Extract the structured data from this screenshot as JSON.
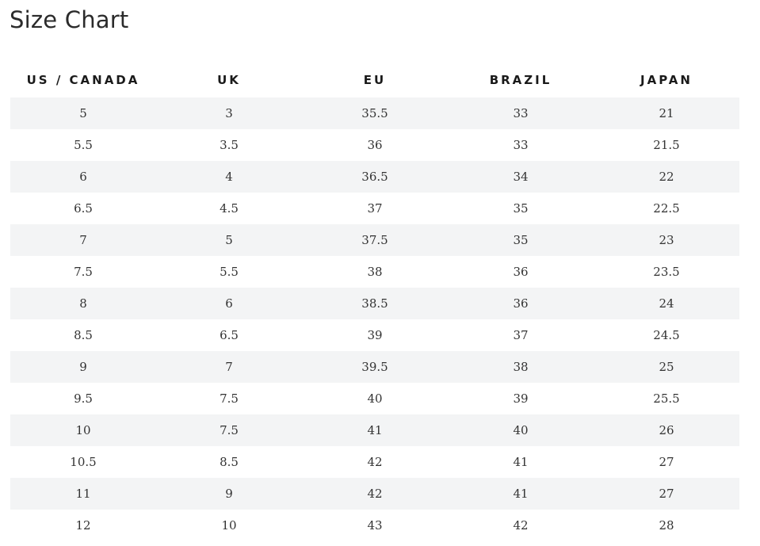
{
  "title": "Size Chart",
  "table": {
    "headers": [
      "US / CANADA",
      "UK",
      "EU",
      "BRAZIL",
      "JAPAN"
    ],
    "rows": [
      [
        "5",
        "3",
        "35.5",
        "33",
        "21"
      ],
      [
        "5.5",
        "3.5",
        "36",
        "33",
        "21.5"
      ],
      [
        "6",
        "4",
        "36.5",
        "34",
        "22"
      ],
      [
        "6.5",
        "4.5",
        "37",
        "35",
        "22.5"
      ],
      [
        "7",
        "5",
        "37.5",
        "35",
        "23"
      ],
      [
        "7.5",
        "5.5",
        "38",
        "36",
        "23.5"
      ],
      [
        "8",
        "6",
        "38.5",
        "36",
        "24"
      ],
      [
        "8.5",
        "6.5",
        "39",
        "37",
        "24.5"
      ],
      [
        "9",
        "7",
        "39.5",
        "38",
        "25"
      ],
      [
        "9.5",
        "7.5",
        "40",
        "39",
        "25.5"
      ],
      [
        "10",
        "7.5",
        "41",
        "40",
        "26"
      ],
      [
        "10.5",
        "8.5",
        "42",
        "41",
        "27"
      ],
      [
        "11",
        "9",
        "42",
        "41",
        "27"
      ],
      [
        "12",
        "10",
        "43",
        "42",
        "28"
      ]
    ]
  },
  "colors": {
    "stripe": "#f3f4f5",
    "text": "#333333",
    "heading": "#1a1a1a"
  }
}
